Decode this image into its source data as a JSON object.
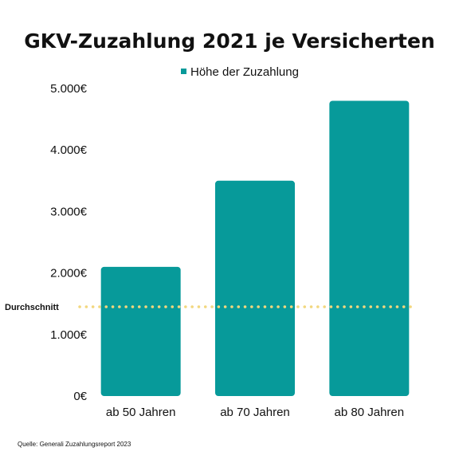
{
  "chart_data": {
    "type": "bar",
    "title": "GKV-Zuzahlung 2021 je Versicherten",
    "categories": [
      "ab 50 Jahren",
      "ab 70 Jahren",
      "ab 80 Jahren"
    ],
    "series": [
      {
        "name": "Höhe der Zuzahlung",
        "values": [
          2100,
          3500,
          4800
        ],
        "color": "#079a9a"
      }
    ],
    "yticks": [
      "0€",
      "1.000€",
      "2.000€",
      "3.000€",
      "4.000€",
      "5.000€"
    ],
    "ytick_values": [
      0,
      1000,
      2000,
      3000,
      4000,
      5000
    ],
    "ylim": [
      0,
      5000
    ],
    "reference_line": {
      "label": "Durchschnitt",
      "value": 1450,
      "style": "dotted",
      "color": "#f2d77e"
    },
    "legend_position": "top-center",
    "grid": false,
    "xlabel": "",
    "ylabel": ""
  },
  "source": "Quelle: Generali Zuzahlungsreport 2023"
}
